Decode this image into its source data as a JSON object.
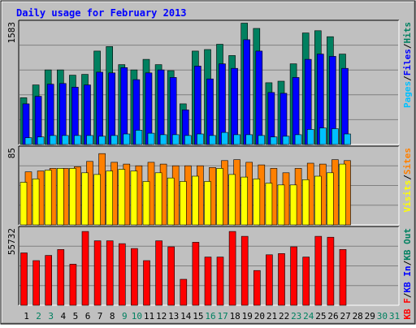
{
  "chart_data": {
    "type": "bar",
    "title": "Daily usage for February 2013",
    "categories": [
      "1",
      "2",
      "3",
      "4",
      "5",
      "6",
      "7",
      "8",
      "9",
      "10",
      "11",
      "12",
      "13",
      "14",
      "15",
      "16",
      "17",
      "18",
      "19",
      "20",
      "21",
      "22",
      "23",
      "24",
      "25",
      "26",
      "27",
      "28",
      "29",
      "30",
      "31"
    ],
    "weekend_days": [
      2,
      3,
      9,
      10,
      16,
      17,
      23,
      24,
      30,
      31
    ],
    "panels": [
      {
        "id": "pages-files-hits",
        "scale_label": "1583",
        "max": 1583,
        "right_label": [
          "Pages",
          "/",
          "Files",
          "/",
          "Hits"
        ],
        "right_label_colors": [
          "#00c0ff",
          "#000000",
          "#0000ff",
          "#000000",
          "#008060"
        ],
        "series": [
          {
            "name": "Hits",
            "color": "#008060",
            "values": [
              620,
              790,
              990,
              990,
              920,
              930,
              1240,
              1300,
              1060,
              990,
              1130,
              1060,
              980,
              540,
              1240,
              1260,
              1330,
              1180,
              1610,
              1540,
              820,
              840,
              1070,
              1480,
              1510,
              1430,
              1200,
              null,
              null,
              null,
              null
            ]
          },
          {
            "name": "Files",
            "color": "#0000ff",
            "values": [
              540,
              640,
              800,
              810,
              760,
              790,
              960,
              950,
              1020,
              860,
              950,
              990,
              890,
              460,
              1040,
              870,
              1070,
              1010,
              1390,
              1240,
              690,
              680,
              890,
              1130,
              1200,
              1170,
              1010,
              null,
              null,
              null,
              null
            ]
          },
          {
            "name": "Pages",
            "color": "#00c0ff",
            "values": [
              90,
              100,
              120,
              120,
              120,
              120,
              110,
              120,
              140,
              190,
              150,
              130,
              130,
              120,
              140,
              120,
              160,
              130,
              130,
              120,
              100,
              110,
              130,
              200,
              220,
              210,
              140,
              null,
              null,
              null,
              null
            ]
          }
        ]
      },
      {
        "id": "visits-sites",
        "scale_label": "85",
        "max": 85,
        "right_label": [
          "Visits",
          "/",
          "Sites"
        ],
        "right_label_colors": [
          "#ffff00",
          "#000000",
          "#ff8000"
        ],
        "series": [
          {
            "name": "Sites",
            "color": "#ff8000",
            "values": [
              61,
              62,
              65,
              65,
              67,
              73,
              82,
              72,
              70,
              68,
              72,
              70,
              68,
              68,
              68,
              66,
              74,
              75,
              72,
              69,
              65,
              60,
              65,
              71,
              70,
              75,
              74,
              null,
              null,
              null,
              null
            ]
          },
          {
            "name": "Visits",
            "color": "#ffff00",
            "values": [
              49,
              53,
              63,
              65,
              65,
              60,
              58,
              62,
              64,
              62,
              50,
              60,
              54,
              50,
              56,
              50,
              65,
              58,
              55,
              53,
              48,
              46,
              46,
              52,
              56,
              60,
              70,
              null,
              null,
              null,
              null
            ]
          }
        ]
      },
      {
        "id": "kb",
        "scale_label": "55732",
        "max": 55732,
        "right_label": [
          "KB F",
          "/",
          "KB In",
          "/",
          "KB Out"
        ],
        "right_label_colors": [
          "#ff0000",
          "#000000",
          "#0000ff",
          "#000000",
          "#008060"
        ],
        "series": [
          {
            "name": "KB F",
            "color": "#ff0000",
            "values": [
              39500,
              33700,
              37600,
              42100,
              31000,
              55700,
              48600,
              48600,
              46500,
              42800,
              33700,
              48600,
              44100,
              19600,
              47500,
              36400,
              36400,
              55700,
              52000,
              26200,
              38100,
              39000,
              44100,
              36400,
              52000,
              51300,
              42100,
              null,
              null,
              null,
              null
            ]
          }
        ]
      }
    ]
  }
}
